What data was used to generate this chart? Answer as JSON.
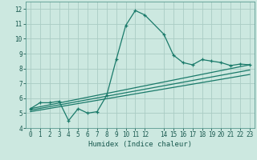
{
  "background_color": "#cce8e0",
  "grid_color": "#aaccc4",
  "line_color": "#1a7a6a",
  "xlabel": "Humidex (Indice chaleur)",
  "xlim": [
    -0.5,
    23.5
  ],
  "ylim": [
    4,
    12.5
  ],
  "yticks": [
    4,
    5,
    6,
    7,
    8,
    9,
    10,
    11,
    12
  ],
  "xtick_vals": [
    0,
    1,
    2,
    3,
    4,
    5,
    6,
    7,
    8,
    9,
    10,
    11,
    12,
    14,
    15,
    16,
    17,
    18,
    19,
    20,
    21,
    22,
    23
  ],
  "xtick_labels": [
    "0",
    "1",
    "2",
    "3",
    "4",
    "5",
    "6",
    "7",
    "8",
    "9",
    "10",
    "11",
    "12",
    "14",
    "15",
    "16",
    "17",
    "18",
    "19",
    "20",
    "21",
    "22",
    "23"
  ],
  "line1_x": [
    0,
    1,
    2,
    3,
    4,
    5,
    6,
    7,
    8,
    9,
    10,
    11,
    12,
    14,
    15,
    16,
    17,
    18,
    19,
    20,
    21,
    22,
    23
  ],
  "line1_y": [
    5.3,
    5.7,
    5.7,
    5.8,
    4.5,
    5.3,
    5.0,
    5.1,
    6.2,
    8.6,
    10.9,
    11.9,
    11.6,
    10.3,
    8.9,
    8.4,
    8.25,
    8.6,
    8.5,
    8.4,
    8.2,
    8.3,
    8.25
  ],
  "line2_x": [
    0,
    23
  ],
  "line2_y": [
    5.3,
    8.25
  ],
  "line3_x": [
    0,
    23
  ],
  "line3_y": [
    5.2,
    7.9
  ],
  "line4_x": [
    0,
    23
  ],
  "line4_y": [
    5.1,
    7.6
  ]
}
